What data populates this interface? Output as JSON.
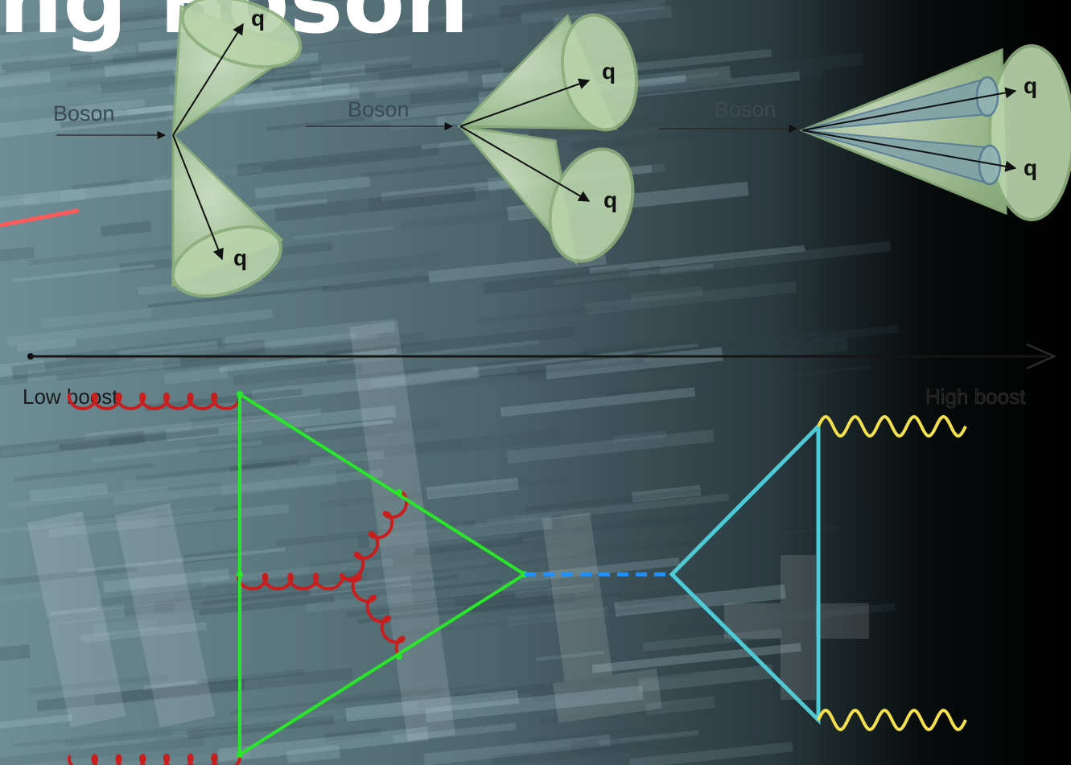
{
  "title_fragment": "ing Boson",
  "axis": {
    "low_label": "Low boost",
    "high_label": "High boost"
  },
  "panels": [
    {
      "boson_label": "Boson",
      "quark_labels": [
        "q",
        "q"
      ]
    },
    {
      "boson_label": "Boson",
      "quark_labels": [
        "q",
        "q"
      ]
    },
    {
      "boson_label": "Boson",
      "quark_labels": [
        "q",
        "q"
      ]
    }
  ],
  "colors": {
    "background_left": "#5d7a84",
    "background_right": "#000000",
    "cone_fill": "#a9c79a",
    "cone_edge": "#8caf7c",
    "inner_cone": "#4f7595",
    "gluon": "#c81e1e",
    "quark_loop": "#28e628",
    "higgs_propagator": "#1e90ff",
    "top_loop": "#4ec9d6",
    "photon": "#f4e04d",
    "signal_line": "#ff5a5a"
  }
}
